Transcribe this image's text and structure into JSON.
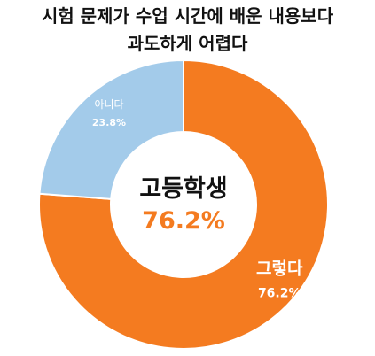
{
  "chart_data": {
    "type": "pie",
    "variant": "donut",
    "title_lines": [
      "시험 문제가 수업 시간에 배운 내용보다",
      "과도하게 어렵다"
    ],
    "center": {
      "label": "고등학생",
      "value_label": "76.2%"
    },
    "slices": [
      {
        "label": "그렇다",
        "value": 76.2,
        "value_label": "76.2%",
        "color": "#F47B20"
      },
      {
        "label": "아니다",
        "value": 23.8,
        "value_label": "23.8%",
        "color": "#A3CBEA"
      }
    ],
    "accent_color": "#F47B20",
    "legend": "none"
  }
}
